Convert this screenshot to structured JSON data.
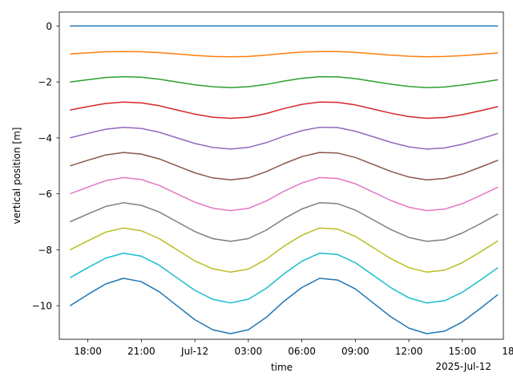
{
  "chart_data": {
    "type": "line",
    "title": "",
    "xlabel": "time",
    "ylabel": "vertical position [m]",
    "x_offset_label": "2025-Jul-12",
    "xlim_hours": [
      -4.6,
      20.3
    ],
    "ylim": [
      -11.2,
      0.5
    ],
    "x_ticks": [
      {
        "label": "18:00",
        "hour": -3
      },
      {
        "label": "21:00",
        "hour": 0
      },
      {
        "label": "Jul-12",
        "hour": 3
      },
      {
        "label": "03:00",
        "hour": 6
      },
      {
        "label": "06:00",
        "hour": 9
      },
      {
        "label": "09:00",
        "hour": 12
      },
      {
        "label": "12:00",
        "hour": 15
      },
      {
        "label": "15:00",
        "hour": 18
      },
      {
        "label": "18:00",
        "hour": 21
      }
    ],
    "y_ticks": [
      {
        "label": "0",
        "value": 0
      },
      {
        "label": "−2",
        "value": -2
      },
      {
        "label": "−4",
        "value": -4
      },
      {
        "label": "−6",
        "value": -6
      },
      {
        "label": "−8",
        "value": -8
      },
      {
        "label": "−10",
        "value": -10
      }
    ],
    "grid": false,
    "legend": "none",
    "x_time": [
      "2025-07-11 17:00",
      "2025-07-11 18:00",
      "2025-07-11 19:00",
      "2025-07-11 20:00",
      "2025-07-11 21:00",
      "2025-07-11 22:00",
      "2025-07-11 23:00",
      "2025-07-12 00:00",
      "2025-07-12 01:00",
      "2025-07-12 02:00",
      "2025-07-12 03:00",
      "2025-07-12 04:00",
      "2025-07-12 05:00",
      "2025-07-12 06:00",
      "2025-07-12 07:00",
      "2025-07-12 08:00",
      "2025-07-12 09:00",
      "2025-07-12 10:00",
      "2025-07-12 11:00",
      "2025-07-12 12:00",
      "2025-07-12 13:00",
      "2025-07-12 14:00",
      "2025-07-12 15:00",
      "2025-07-12 16:00",
      "2025-07-12 17:00"
    ],
    "series": [
      {
        "color": "#1f77b4",
        "values": [
          0,
          0,
          0,
          0,
          0,
          0,
          0,
          0,
          0,
          0,
          0,
          0,
          0,
          0,
          0,
          0,
          0,
          0,
          0,
          0,
          0,
          0,
          0,
          0,
          0
        ]
      },
      {
        "color": "#ff7f0e",
        "values": [
          -1.0,
          -0.96,
          -0.92,
          -0.91,
          -0.92,
          -0.95,
          -1.0,
          -1.05,
          -1.09,
          -1.1,
          -1.09,
          -1.04,
          -0.98,
          -0.93,
          -0.91,
          -0.91,
          -0.94,
          -0.99,
          -1.04,
          -1.08,
          -1.1,
          -1.09,
          -1.06,
          -1.01,
          -0.96
        ]
      },
      {
        "color": "#2ca02c",
        "values": [
          -2.0,
          -1.92,
          -1.84,
          -1.81,
          -1.83,
          -1.9,
          -2.0,
          -2.1,
          -2.17,
          -2.2,
          -2.17,
          -2.09,
          -1.97,
          -1.87,
          -1.81,
          -1.82,
          -1.88,
          -1.98,
          -2.08,
          -2.16,
          -2.2,
          -2.18,
          -2.11,
          -2.02,
          -1.92
        ]
      },
      {
        "color": "#d62728",
        "values": [
          -3.0,
          -2.88,
          -2.77,
          -2.72,
          -2.75,
          -2.85,
          -3.0,
          -3.15,
          -3.26,
          -3.3,
          -3.26,
          -3.13,
          -2.95,
          -2.8,
          -2.72,
          -2.73,
          -2.82,
          -2.97,
          -3.12,
          -3.24,
          -3.3,
          -3.27,
          -3.17,
          -3.03,
          -2.88
        ]
      },
      {
        "color": "#9467bd",
        "values": [
          -4.0,
          -3.84,
          -3.69,
          -3.62,
          -3.66,
          -3.8,
          -4.0,
          -4.2,
          -4.34,
          -4.4,
          -4.34,
          -4.17,
          -3.94,
          -3.74,
          -3.62,
          -3.63,
          -3.76,
          -3.96,
          -4.16,
          -4.32,
          -4.4,
          -4.36,
          -4.23,
          -4.04,
          -3.84
        ]
      },
      {
        "color": "#8c564b",
        "values": [
          -5.0,
          -4.8,
          -4.61,
          -4.52,
          -4.58,
          -4.75,
          -5.0,
          -5.25,
          -5.43,
          -5.5,
          -5.43,
          -5.21,
          -4.92,
          -4.67,
          -4.52,
          -4.54,
          -4.7,
          -4.95,
          -5.2,
          -5.4,
          -5.5,
          -5.45,
          -5.29,
          -5.05,
          -4.8
        ]
      },
      {
        "color": "#e377c2",
        "values": [
          -6.0,
          -5.76,
          -5.53,
          -5.42,
          -5.49,
          -5.7,
          -6.0,
          -6.3,
          -6.51,
          -6.6,
          -6.52,
          -6.26,
          -5.91,
          -5.61,
          -5.42,
          -5.45,
          -5.64,
          -5.94,
          -6.24,
          -6.48,
          -6.6,
          -6.55,
          -6.35,
          -6.06,
          -5.76
        ]
      },
      {
        "color": "#7f7f7f",
        "values": [
          -7.0,
          -6.72,
          -6.45,
          -6.32,
          -6.41,
          -6.65,
          -7.0,
          -7.35,
          -7.6,
          -7.7,
          -7.6,
          -7.3,
          -6.89,
          -6.54,
          -6.32,
          -6.35,
          -6.58,
          -6.93,
          -7.28,
          -7.56,
          -7.7,
          -7.64,
          -7.4,
          -7.07,
          -6.72
        ]
      },
      {
        "color": "#bcbd22",
        "values": [
          -8.0,
          -7.68,
          -7.37,
          -7.22,
          -7.32,
          -7.6,
          -8.0,
          -8.4,
          -8.68,
          -8.8,
          -8.69,
          -8.34,
          -7.87,
          -7.48,
          -7.22,
          -7.26,
          -7.52,
          -7.92,
          -8.32,
          -8.64,
          -8.8,
          -8.73,
          -8.46,
          -8.08,
          -7.68
        ]
      },
      {
        "color": "#17becf",
        "values": [
          -9.0,
          -8.64,
          -8.3,
          -8.12,
          -8.23,
          -8.55,
          -9.0,
          -9.45,
          -9.77,
          -9.9,
          -9.77,
          -9.38,
          -8.86,
          -8.41,
          -8.12,
          -8.17,
          -8.46,
          -8.91,
          -9.36,
          -9.72,
          -9.9,
          -9.82,
          -9.52,
          -9.09,
          -8.64
        ]
      },
      {
        "color": "#1f77b4",
        "values": [
          -10.0,
          -9.6,
          -9.22,
          -9.02,
          -9.14,
          -9.5,
          -10.0,
          -10.5,
          -10.86,
          -11.0,
          -10.86,
          -10.42,
          -9.84,
          -9.35,
          -9.02,
          -9.08,
          -9.4,
          -9.9,
          -10.4,
          -10.8,
          -11.0,
          -10.91,
          -10.58,
          -10.1,
          -9.6
        ]
      }
    ]
  }
}
